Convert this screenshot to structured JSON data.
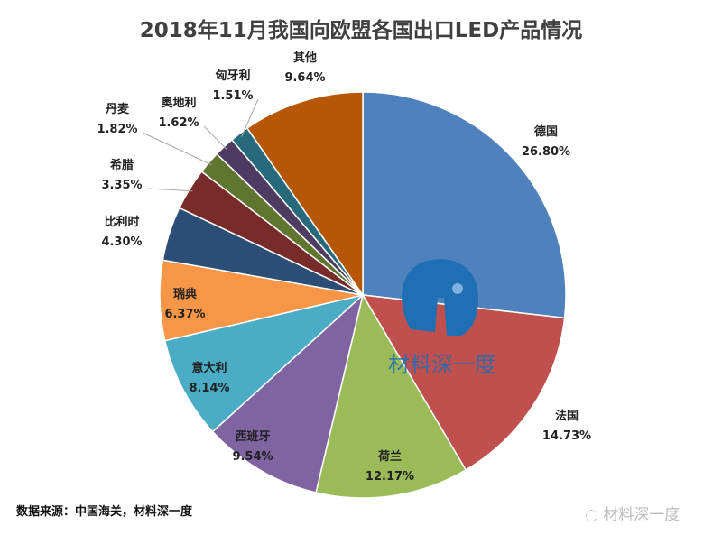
{
  "chart_data": {
    "type": "pie",
    "title": "2018年11月我国向欧盟各国出口LED产品情况",
    "start": "top",
    "direction": "clockwise",
    "slices": [
      {
        "label": "德国",
        "value": 26.8,
        "text": "26.80%",
        "color": "#4f81bd"
      },
      {
        "label": "法国",
        "value": 14.73,
        "text": "14.73%",
        "color": "#c0504d"
      },
      {
        "label": "荷兰",
        "value": 12.17,
        "text": "12.17%",
        "color": "#9bbb59"
      },
      {
        "label": "西班牙",
        "value": 9.54,
        "text": "9.54%",
        "color": "#8064a2"
      },
      {
        "label": "意大利",
        "value": 8.14,
        "text": "8.14%",
        "color": "#4bacc6"
      },
      {
        "label": "瑞典",
        "value": 6.37,
        "text": "6.37%",
        "color": "#f79646"
      },
      {
        "label": "比利时",
        "value": 4.3,
        "text": "4.30%",
        "color": "#2c4d75"
      },
      {
        "label": "希腊",
        "value": 3.35,
        "text": "3.35%",
        "color": "#772c2a"
      },
      {
        "label": "丹麦",
        "value": 1.82,
        "text": "1.82%",
        "color": "#5f7530"
      },
      {
        "label": "奥地利",
        "value": 1.62,
        "text": "1.62%",
        "color": "#4d3b62"
      },
      {
        "label": "匈牙利",
        "value": 1.51,
        "text": "1.51%",
        "color": "#276a7c"
      },
      {
        "label": "其他",
        "value": 9.64,
        "text": "9.64%",
        "color": "#b65708"
      }
    ]
  },
  "source": "数据来源：中国海关，材料深一度",
  "watermark": "材料深一度",
  "footer_brand": "材料深一度",
  "footer_icon": "wechat-icon"
}
